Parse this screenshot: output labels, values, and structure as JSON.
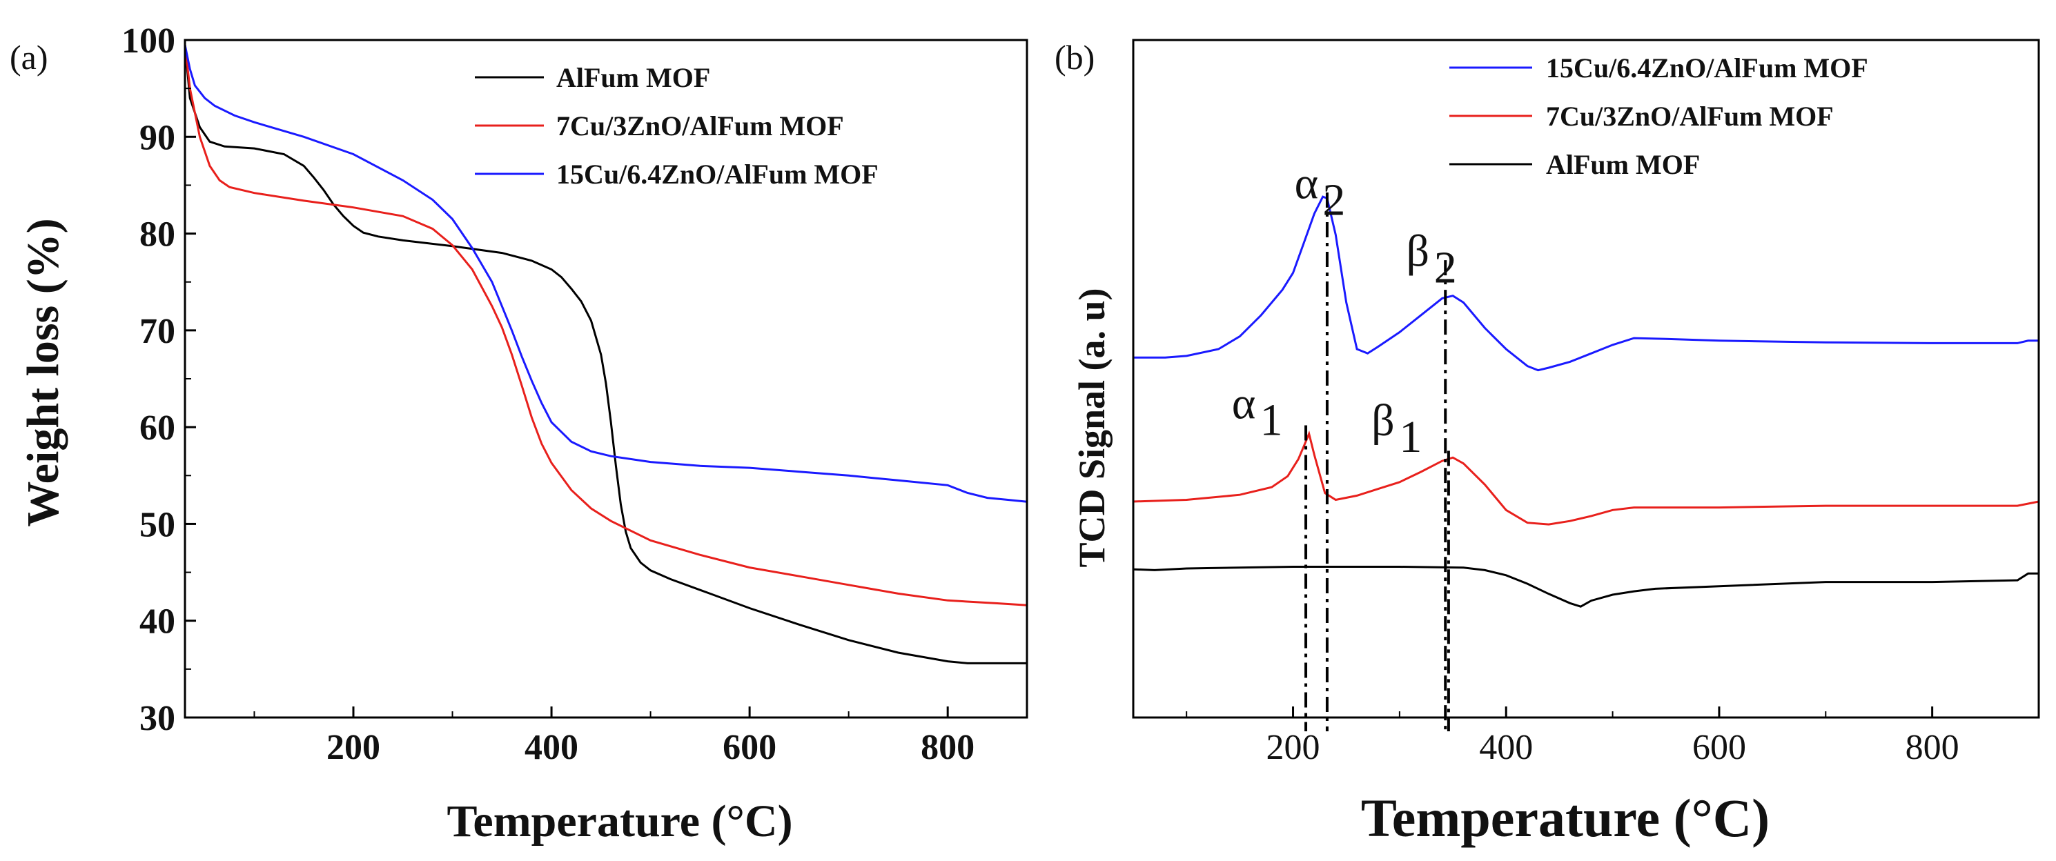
{
  "chart_data": [
    {
      "type": "line",
      "panel_label": "(a)",
      "xlabel": "Temperature (°C)",
      "ylabel": "Weight loss (%)",
      "xlim": [
        30,
        880
      ],
      "ylim": [
        30,
        100
      ],
      "x_ticks": [
        200,
        400,
        600,
        800
      ],
      "y_ticks": [
        30,
        40,
        50,
        60,
        70,
        80,
        90,
        100
      ],
      "legend_position": "top-right",
      "series": [
        {
          "name": "AlFum MOF",
          "color": "#000000",
          "x": [
            30,
            35,
            45,
            55,
            70,
            100,
            130,
            150,
            160,
            170,
            180,
            190,
            200,
            210,
            225,
            250,
            300,
            350,
            380,
            400,
            410,
            420,
            430,
            440,
            450,
            455,
            460,
            465,
            470,
            475,
            480,
            490,
            500,
            520,
            560,
            600,
            650,
            700,
            750,
            800,
            820,
            840,
            860,
            880
          ],
          "y": [
            99.5,
            94,
            91,
            89.5,
            89,
            88.8,
            88.2,
            87,
            85.8,
            84.5,
            83,
            81.8,
            80.8,
            80.1,
            79.7,
            79.3,
            78.7,
            78,
            77.2,
            76.3,
            75.5,
            74.3,
            73,
            71,
            67.5,
            64.5,
            60.5,
            56,
            52,
            49.2,
            47.5,
            46,
            45.2,
            44.3,
            42.8,
            41.3,
            39.6,
            38,
            36.7,
            35.8,
            35.6,
            35.6,
            35.6,
            35.6
          ]
        },
        {
          "name": "7Cu/3ZnO/AlFum MOF",
          "color": "#e8201c",
          "x": [
            30,
            35,
            45,
            55,
            65,
            75,
            100,
            150,
            200,
            250,
            280,
            300,
            320,
            340,
            350,
            360,
            370,
            380,
            390,
            400,
            420,
            440,
            460,
            500,
            550,
            600,
            650,
            700,
            750,
            800,
            850,
            880
          ],
          "y": [
            99.5,
            95,
            90,
            87,
            85.5,
            84.8,
            84.2,
            83.4,
            82.7,
            81.8,
            80.5,
            78.8,
            76.3,
            72.5,
            70.3,
            67.5,
            64.3,
            61,
            58.3,
            56.3,
            53.5,
            51.6,
            50.3,
            48.3,
            46.8,
            45.5,
            44.6,
            43.7,
            42.8,
            42.1,
            41.8,
            41.6
          ]
        },
        {
          "name": "15Cu/6.4ZnO/AlFum MOF",
          "color": "#1a1aff",
          "x": [
            30,
            35,
            40,
            50,
            60,
            80,
            100,
            150,
            200,
            250,
            280,
            300,
            320,
            340,
            350,
            360,
            370,
            380,
            390,
            400,
            420,
            440,
            460,
            500,
            550,
            600,
            650,
            700,
            750,
            800,
            820,
            840,
            860,
            880
          ],
          "y": [
            99.5,
            97,
            95.3,
            94,
            93.2,
            92.2,
            91.5,
            90,
            88.2,
            85.5,
            83.5,
            81.5,
            78.5,
            75,
            72.5,
            70,
            67.3,
            64.8,
            62.5,
            60.5,
            58.5,
            57.5,
            57,
            56.4,
            56,
            55.8,
            55.4,
            55,
            54.5,
            54,
            53.2,
            52.7,
            52.5,
            52.3
          ]
        }
      ]
    },
    {
      "type": "line",
      "panel_label": "(b)",
      "xlabel": "Temperature (°C)",
      "ylabel": "TCD Signal (a. u)",
      "xlim": [
        50,
        900
      ],
      "x_ticks": [
        200,
        400,
        600,
        800
      ],
      "y_ticks": [],
      "legend_position": "top-right",
      "series": [
        {
          "name": "15Cu/6.4ZnO/AlFum MOF",
          "color": "#1a1aff",
          "x": [
            50,
            80,
            100,
            130,
            150,
            170,
            190,
            200,
            210,
            220,
            228,
            232,
            240,
            250,
            260,
            270,
            280,
            300,
            320,
            340,
            350,
            360,
            380,
            400,
            420,
            430,
            440,
            460,
            480,
            500,
            520,
            550,
            600,
            700,
            800,
            880,
            890,
            900
          ],
          "y": [
            62.5,
            62.5,
            62.7,
            63.5,
            65,
            67.5,
            70.5,
            72.5,
            76,
            79.5,
            81.5,
            81.3,
            77,
            69,
            63.5,
            63,
            63.8,
            65.5,
            67.5,
            69.5,
            69.8,
            69,
            66,
            63.5,
            61.5,
            61,
            61.3,
            62,
            63,
            64,
            64.8,
            64.7,
            64.5,
            64.3,
            64.2,
            64.2,
            64.5,
            64.5
          ]
        },
        {
          "name": "7Cu/3ZnO/AlFum MOF",
          "color": "#e8201c",
          "x": [
            50,
            100,
            150,
            180,
            195,
            205,
            210,
            215,
            220,
            230,
            240,
            260,
            280,
            300,
            320,
            340,
            350,
            360,
            380,
            400,
            420,
            440,
            460,
            480,
            500,
            520,
            600,
            700,
            800,
            880,
            900
          ],
          "y": [
            45.5,
            45.7,
            46.3,
            47.2,
            48.5,
            50.5,
            52,
            53.5,
            51,
            46.5,
            45.7,
            46.2,
            47,
            47.8,
            49,
            50.3,
            50.7,
            50,
            47.5,
            44.5,
            43,
            42.8,
            43.2,
            43.8,
            44.5,
            44.8,
            44.8,
            45,
            45,
            45,
            45.5
          ]
        },
        {
          "name": "AlFum MOF",
          "color": "#000000",
          "x": [
            50,
            70,
            100,
            200,
            300,
            360,
            380,
            400,
            420,
            440,
            460,
            470,
            480,
            500,
            520,
            540,
            600,
            700,
            800,
            880,
            890,
            900
          ],
          "y": [
            37.5,
            37.4,
            37.6,
            37.8,
            37.8,
            37.7,
            37.4,
            36.8,
            35.8,
            34.6,
            33.5,
            33.1,
            33.8,
            34.5,
            34.9,
            35.2,
            35.5,
            36,
            36,
            36.2,
            37,
            37
          ]
        }
      ]
    }
  ],
  "peak_annotations": [
    {
      "symbol": "α",
      "sub": "2",
      "x": 232
    },
    {
      "symbol": "β",
      "sub": "2",
      "x": 343
    },
    {
      "symbol": "α",
      "sub": "1",
      "x": 212
    },
    {
      "symbol": "β",
      "sub": "1",
      "x": 346
    }
  ]
}
